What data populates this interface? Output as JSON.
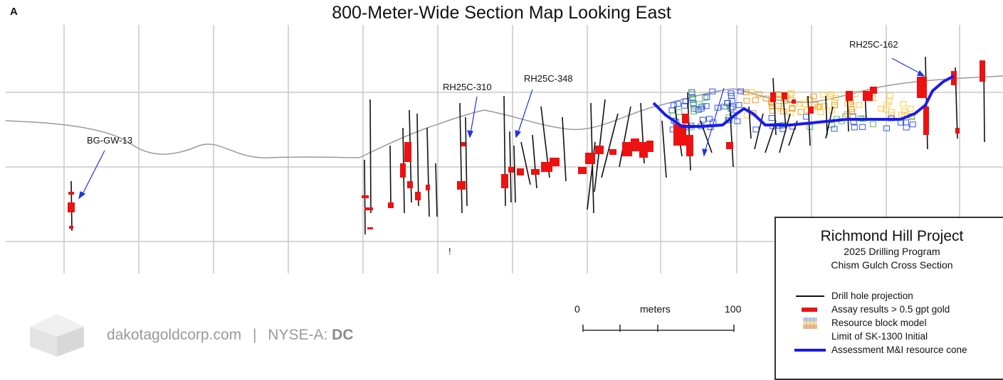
{
  "panel_letter": "A",
  "title": "800-Meter-Wide Section Map Looking East",
  "hole_labels": [
    "BG-GW-13",
    "RH25C-310",
    "RH25C-348",
    "RH25C-162"
  ],
  "stray_mark": "!",
  "scale": {
    "start": "0",
    "unit": "meters",
    "end": "100"
  },
  "legend": {
    "title": "Richmond Hill Project",
    "subtitle1": "2025 Drilling Program",
    "subtitle2": "Chism Gulch Cross Section",
    "items": [
      {
        "label": "Drill hole projection",
        "symbol": "black-line-icon"
      },
      {
        "label": "Assay results > 0.5 gpt gold",
        "symbol": "red-bar-icon"
      },
      {
        "label": "Resource block model",
        "symbol": "block-grid-icon"
      },
      {
        "label": "Limit of SK-1300 Initial",
        "symbol": "none"
      },
      {
        "label": "Assessment M&I resource cone",
        "symbol": "blue-line-icon"
      }
    ]
  },
  "footer": {
    "domain": "dakotagoldcorp.com",
    "separator": "|",
    "exchange": "NYSE-A:",
    "ticker": "DC"
  },
  "colors": {
    "drill": "#111111",
    "assay": "#ee1111",
    "cone": "#1a1aee",
    "topo": "#999999",
    "grid": "#c8c8c8",
    "pointer": "#2233dd"
  }
}
